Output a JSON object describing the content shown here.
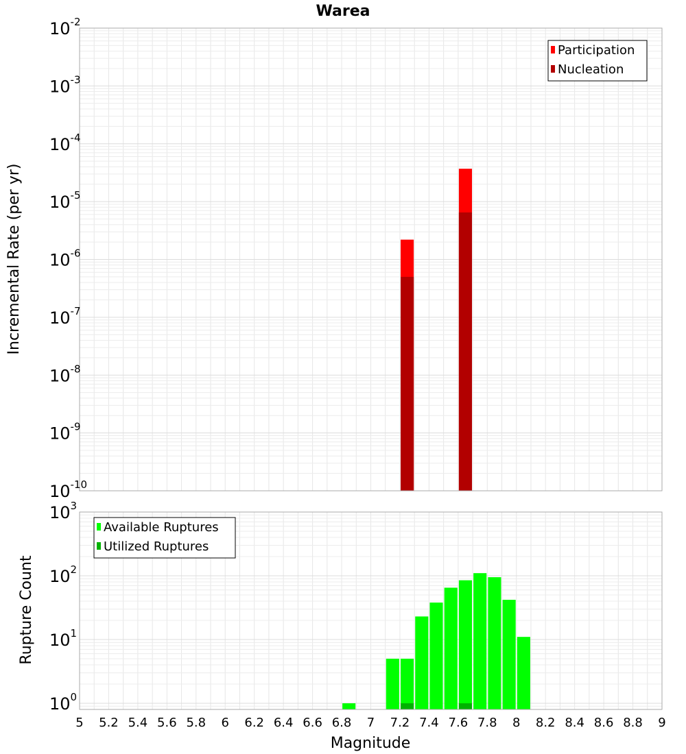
{
  "chart_data": [
    {
      "type": "bar",
      "title": "Warea",
      "xlabel": "",
      "ylabel": "Incremental Rate (per yr)",
      "yscale": "log",
      "ylim": [
        1e-10,
        0.01
      ],
      "xlim": [
        5,
        9
      ],
      "y_ticks": [
        {
          "base": "10",
          "exp": "-2"
        },
        {
          "base": "10",
          "exp": "-3"
        },
        {
          "base": "10",
          "exp": "-4"
        },
        {
          "base": "10",
          "exp": "-5"
        },
        {
          "base": "10",
          "exp": "-6"
        },
        {
          "base": "10",
          "exp": "-7"
        },
        {
          "base": "10",
          "exp": "-8"
        },
        {
          "base": "10",
          "exp": "-9"
        },
        {
          "base": "10",
          "exp": "-10"
        }
      ],
      "grid": true,
      "legend_position": "top-right",
      "series": [
        {
          "name": "Participation",
          "color": "#ff0000",
          "x": [
            7.25,
            7.65
          ],
          "values": [
            2.2e-06,
            3.7e-05
          ]
        },
        {
          "name": "Nucleation",
          "color": "#b20000",
          "x": [
            7.25,
            7.65
          ],
          "values": [
            5e-07,
            6.5e-06
          ]
        }
      ]
    },
    {
      "type": "bar",
      "xlabel": "Magnitude",
      "ylabel": "Rupture Count",
      "yscale": "log",
      "ylim": [
        0.8,
        1000
      ],
      "xlim": [
        5,
        9
      ],
      "y_ticks": [
        {
          "base": "10",
          "exp": "3"
        },
        {
          "base": "10",
          "exp": "2"
        },
        {
          "base": "10",
          "exp": "1"
        },
        {
          "base": "10",
          "exp": "0"
        }
      ],
      "x_ticks": [
        "5",
        "5.2",
        "5.4",
        "5.6",
        "5.8",
        "6",
        "6.2",
        "6.4",
        "6.6",
        "6.8",
        "7",
        "7.2",
        "7.4",
        "7.6",
        "7.8",
        "8",
        "8.2",
        "8.4",
        "8.6",
        "8.8",
        "9"
      ],
      "grid": true,
      "legend_position": "top-left",
      "series": [
        {
          "name": "Available Ruptures",
          "color": "#00ff00",
          "x": [
            6.85,
            7.15,
            7.25,
            7.35,
            7.45,
            7.55,
            7.65,
            7.75,
            7.85,
            7.95,
            8.05
          ],
          "values": [
            1,
            5,
            5,
            23,
            38,
            65,
            85,
            110,
            95,
            42,
            11
          ]
        },
        {
          "name": "Utilized Ruptures",
          "color": "#00b200",
          "x": [
            7.25,
            7.65
          ],
          "values": [
            1,
            1
          ]
        }
      ]
    }
  ]
}
